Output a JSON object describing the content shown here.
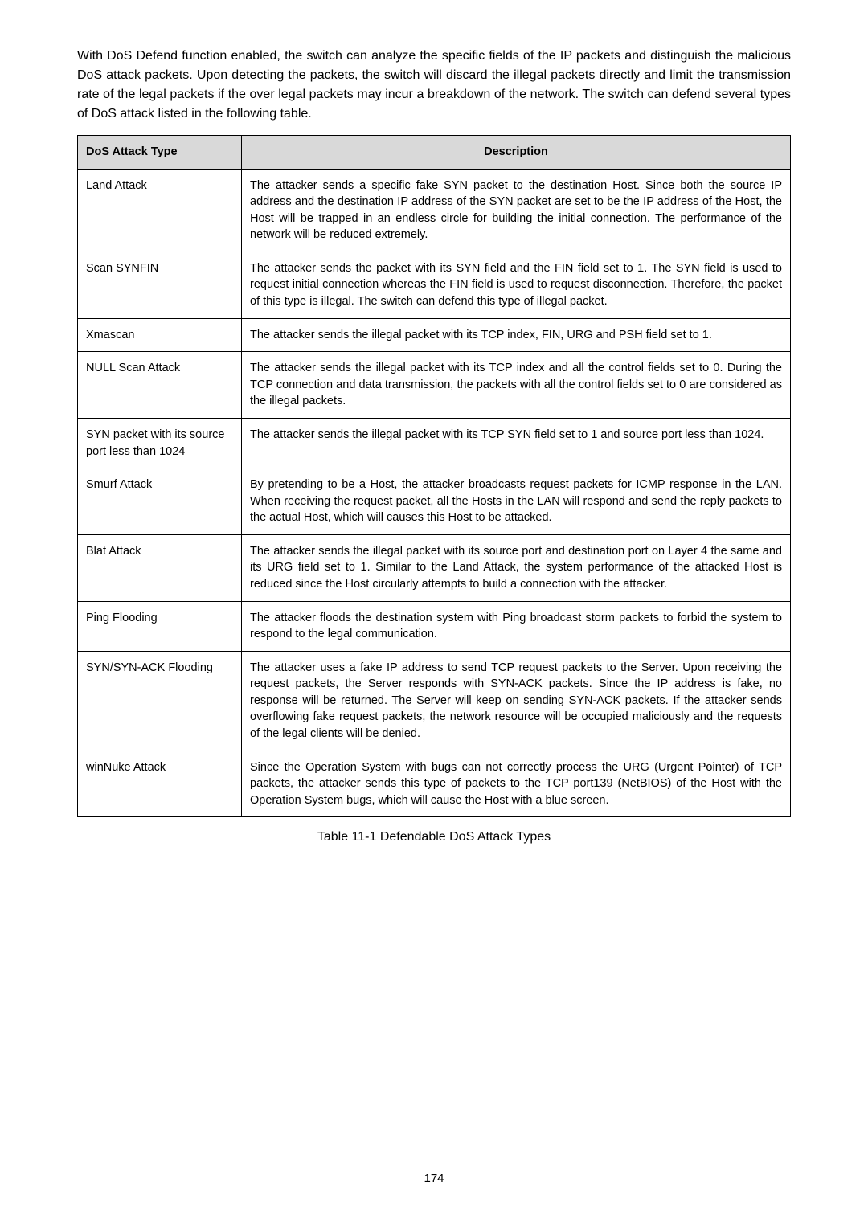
{
  "intro": "With DoS Defend function enabled, the switch can analyze the specific fields of the IP packets and distinguish the malicious DoS attack packets. Upon detecting the packets, the switch will discard the illegal packets directly and limit the transmission rate of the legal packets if the over legal packets may incur a breakdown of the network. The switch can defend several types of DoS attack listed in the following table.",
  "table": {
    "headers": {
      "type": "DoS Attack Type",
      "desc": "Description"
    },
    "rows": [
      {
        "type": "Land Attack",
        "desc": "The attacker sends a specific fake SYN packet to the destination Host. Since both the source IP address and the destination IP address of the SYN packet are set to be the IP address of the Host, the Host will be trapped in an endless circle for building the initial connection. The performance of the network will be reduced extremely."
      },
      {
        "type": "Scan SYNFIN",
        "desc": "The attacker sends the packet with its SYN field and the FIN field set to 1. The SYN field is used to request initial connection whereas the FIN field is used to request disconnection. Therefore, the packet of this type is illegal. The switch can defend this type of illegal packet."
      },
      {
        "type": "Xmascan",
        "desc": "The attacker sends the illegal packet with its TCP index, FIN, URG and PSH field set to 1."
      },
      {
        "type": "NULL Scan Attack",
        "desc": "The attacker sends the illegal packet with its TCP index and all the control fields set to 0. During the TCP connection and data transmission, the packets with all the control fields set to 0 are considered as the illegal packets."
      },
      {
        "type": "SYN packet with its source port less than 1024",
        "desc": "The attacker sends the illegal packet with its TCP SYN field set to 1 and source port less than 1024."
      },
      {
        "type": "Smurf Attack",
        "desc": "By pretending to be a Host, the attacker broadcasts request packets for ICMP response in the LAN. When receiving the request packet, all the Hosts in the LAN will respond and send the reply packets to the actual Host, which will causes this Host to be attacked."
      },
      {
        "type": "Blat Attack",
        "desc": "The attacker sends the illegal packet with its source port and destination port on Layer 4 the same and its URG field set to 1. Similar to the Land Attack, the system performance of the attacked Host is reduced since the Host circularly attempts to build a connection with the attacker."
      },
      {
        "type": "Ping Flooding",
        "desc": "The attacker floods the destination system with Ping broadcast storm packets to forbid the system to respond to the legal communication."
      },
      {
        "type": "SYN/SYN-ACK Flooding",
        "desc": "The attacker uses a fake IP address to send TCP request packets to the Server. Upon receiving the request packets, the Server responds with SYN-ACK packets. Since the IP address is fake, no response will be returned. The Server will keep on sending SYN-ACK packets. If the attacker sends overflowing fake request packets, the network resource will be occupied maliciously and the requests of the legal clients will be denied."
      },
      {
        "type": "winNuke Attack",
        "desc": "Since the Operation System with bugs can not correctly process the URG (Urgent Pointer) of TCP packets, the attacker sends this type of packets to the TCP port139 (NetBIOS) of the Host with the Operation System bugs, which will cause the Host with a blue screen."
      }
    ]
  },
  "caption": "Table 11-1 Defendable DoS Attack Types",
  "pageNumber": "174"
}
